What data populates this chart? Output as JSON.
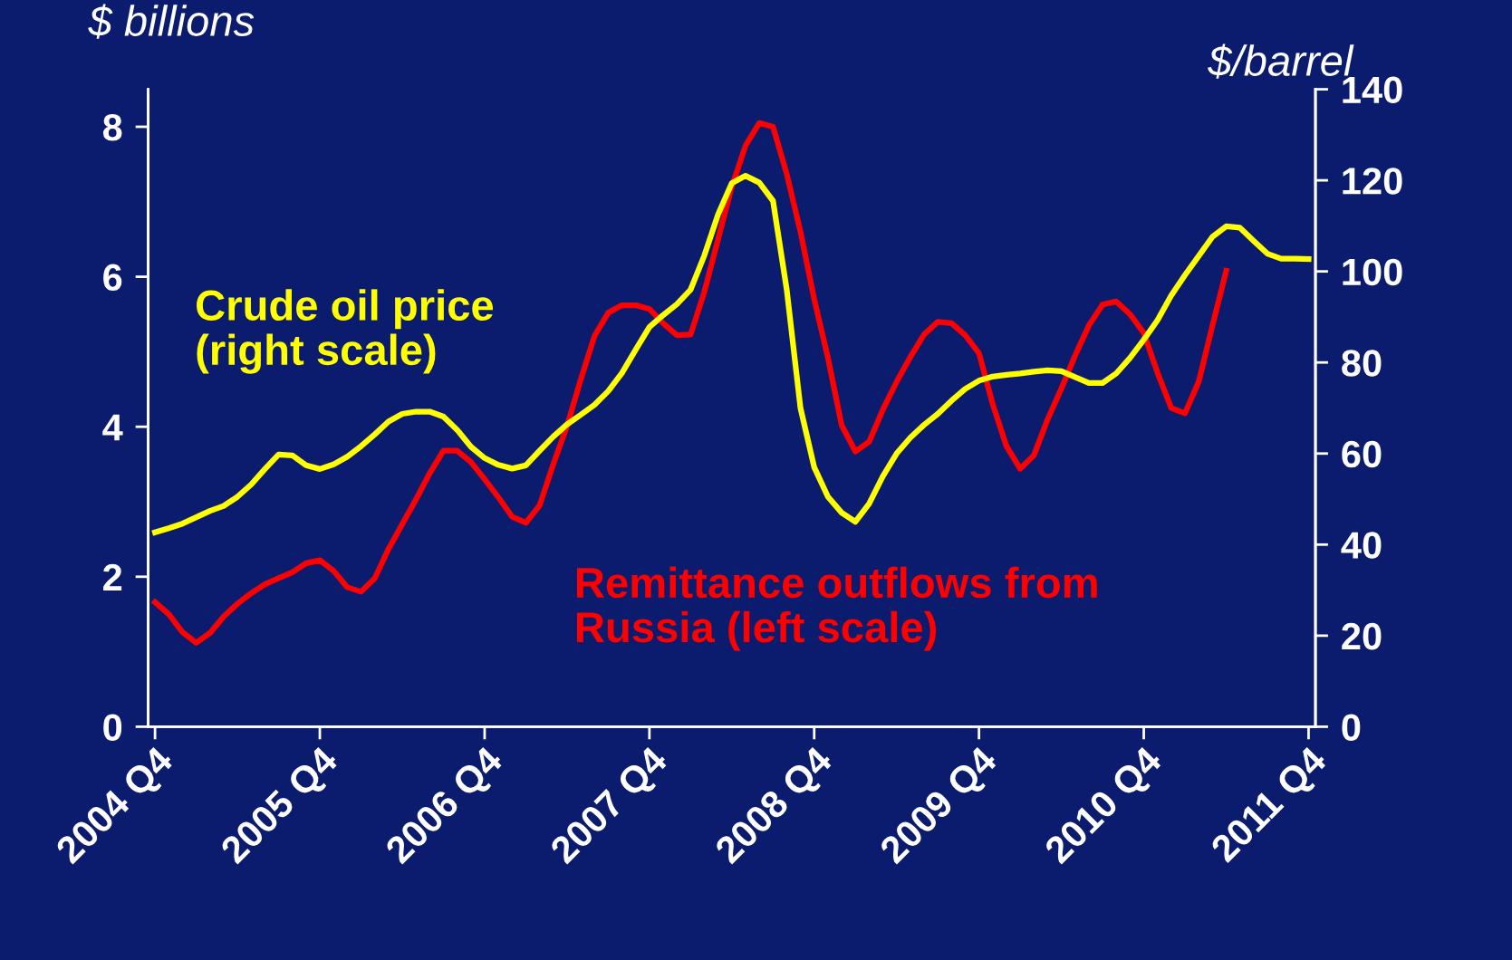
{
  "chart_data": {
    "type": "line",
    "ylabel": "$ billions",
    "y2label": "$/barrel",
    "categories": [
      "2004 Q4",
      null,
      null,
      null,
      null,
      null,
      null,
      null,
      null,
      null,
      null,
      null,
      "2005 Q4",
      null,
      null,
      null,
      null,
      null,
      null,
      null,
      null,
      null,
      null,
      null,
      "2006 Q4",
      null,
      null,
      null,
      null,
      null,
      null,
      null,
      null,
      null,
      null,
      null,
      "2007 Q4",
      null,
      null,
      null,
      null,
      null,
      null,
      null,
      null,
      null,
      null,
      null,
      "2008 Q4",
      null,
      null,
      null,
      null,
      null,
      null,
      null,
      null,
      null,
      null,
      null,
      "2009 Q4",
      null,
      null,
      null,
      null,
      null,
      null,
      null,
      null,
      null,
      null,
      null,
      "2010 Q4",
      null,
      null,
      null,
      null,
      null,
      null,
      null,
      null,
      null,
      null,
      null,
      "2011 Q4"
    ],
    "ylim": [
      0,
      8.5
    ],
    "yticks": [
      0,
      2,
      4,
      6,
      8
    ],
    "y2lim": [
      0,
      140
    ],
    "y2ticks": [
      0,
      20,
      40,
      60,
      80,
      100,
      120,
      140
    ],
    "grid": false,
    "legend": false,
    "marker": "none",
    "line_style": "solid",
    "series": [
      {
        "name": "Remittance outflows from\nRussia (left scale)",
        "color": "#ff0000",
        "values": [
          1.66,
          1.5,
          1.26,
          1.12,
          1.25,
          1.47,
          1.64,
          1.78,
          1.9,
          1.98,
          2.06,
          2.18,
          2.22,
          2.08,
          1.86,
          1.8,
          1.98,
          2.37,
          2.7,
          3.03,
          3.38,
          3.68,
          3.68,
          3.53,
          3.3,
          3.06,
          2.8,
          2.72,
          2.95,
          3.5,
          4.01,
          4.63,
          5.21,
          5.52,
          5.62,
          5.62,
          5.57,
          5.38,
          5.22,
          5.23,
          5.8,
          6.5,
          7.2,
          7.75,
          8.05,
          8.0,
          7.37,
          6.6,
          5.7,
          4.92,
          4.02,
          3.67,
          3.8,
          4.23,
          4.6,
          4.93,
          5.23,
          5.4,
          5.38,
          5.22,
          4.98,
          4.3,
          3.74,
          3.44,
          3.62,
          4.1,
          4.51,
          4.95,
          5.35,
          5.63,
          5.67,
          5.5,
          5.25,
          4.72,
          4.25,
          4.18,
          4.6,
          5.35,
          6.08,
          null,
          null,
          null,
          null,
          null,
          null
        ]
      },
      {
        "name": "Crude oil price\n(right scale)",
        "color": "#ffff00",
        "axis": "y2",
        "values": [
          42.7,
          43.6,
          44.6,
          46,
          47.4,
          48.5,
          50.5,
          53.2,
          56.6,
          59.8,
          59.6,
          57.4,
          56.6,
          57.6,
          59.3,
          61.6,
          64.2,
          67.0,
          68.7,
          69.2,
          69.2,
          68.1,
          65.2,
          61.5,
          59.0,
          57.5,
          56.7,
          57.4,
          60.6,
          63.7,
          66.4,
          68.5,
          70.7,
          73.7,
          77.7,
          82.8,
          87.8,
          90.4,
          92.8,
          96.0,
          103.5,
          112.5,
          119.4,
          121.0,
          119.5,
          115.5,
          96,
          70,
          57,
          50.5,
          47,
          45,
          49,
          55,
          60,
          63.5,
          66.3,
          68.7,
          71.6,
          74.2,
          76,
          76.9,
          77.3,
          77.6,
          78,
          78.3,
          78.1,
          76.8,
          75.5,
          75.5,
          77.6,
          81,
          85,
          89.3,
          94.7,
          99.2,
          103.4,
          107.6,
          109.9,
          109.6,
          106.7,
          103.9,
          102.8,
          102.8,
          102.7
        ]
      }
    ]
  }
}
